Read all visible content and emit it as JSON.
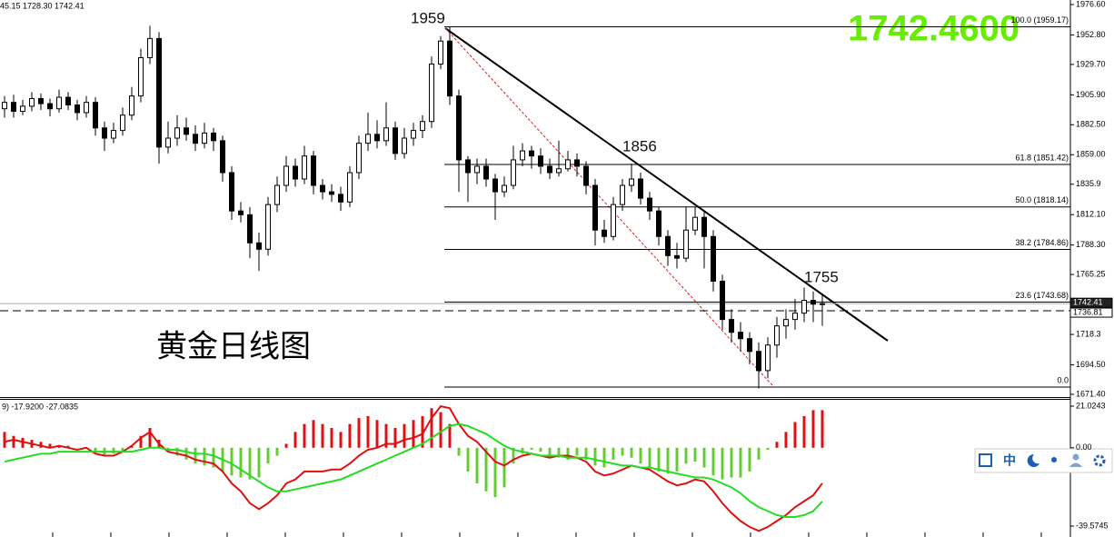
{
  "header": {
    "ohlc_text": "45.15 1728.30 1742.41",
    "big_price": "1742.4600",
    "chart_title": "黄金日线图",
    "annotations": [
      "1959",
      "1856",
      "1755"
    ]
  },
  "toolbar": {
    "lang": "中"
  },
  "chart_data": [
    {
      "type": "candlestick",
      "up_color": "#ffffff",
      "down_color": "#000000",
      "ylim": [
        1671.4,
        1976.6
      ],
      "yticks": [
        {
          "value": 1976.6,
          "label": "1976.60"
        },
        {
          "value": 1952.8,
          "label": "1952.80"
        },
        {
          "value": 1929.7,
          "label": "1929.70"
        },
        {
          "value": 1905.9,
          "label": "1905.90"
        },
        {
          "value": 1882.5,
          "label": "1882.50"
        },
        {
          "value": 1859.0,
          "label": "1859.00"
        },
        1835.9,
        {
          "value": 1812.1,
          "label": "1812.10"
        },
        {
          "value": 1788.3,
          "label": "1788.30"
        },
        1765.25,
        1718.3,
        {
          "value": 1694.5,
          "label": "1694.50"
        },
        {
          "value": 1671.4,
          "label": "1671.40"
        }
      ],
      "price_markers": [
        1742.41,
        1736.81
      ],
      "fib_levels": [
        {
          "value": 1959.17,
          "label": "100.0 (1959.17)"
        },
        {
          "value": 1851.42,
          "label": "61.8 (1851.42)"
        },
        {
          "value": 1818.14,
          "label": "50.0 (1818.14)"
        },
        {
          "value": 1784.86,
          "label": "38.2 (1784.86)"
        },
        {
          "value": 1743.68,
          "label": "23.6 (1743.68)"
        },
        {
          "value": 1677.12,
          "label": "0.0"
        }
      ],
      "candles": [
        [
          1895,
          1905,
          1888,
          1900
        ],
        [
          1900,
          1906,
          1888,
          1893
        ],
        [
          1893,
          1902,
          1890,
          1897
        ],
        [
          1897,
          1908,
          1893,
          1903
        ],
        [
          1903,
          1907,
          1894,
          1899
        ],
        [
          1899,
          1903,
          1889,
          1895
        ],
        [
          1895,
          1910,
          1892,
          1904
        ],
        [
          1904,
          1908,
          1894,
          1898
        ],
        [
          1898,
          1902,
          1886,
          1892
        ],
        [
          1892,
          1905,
          1888,
          1900
        ],
        [
          1900,
          1904,
          1874,
          1880
        ],
        [
          1880,
          1885,
          1862,
          1872
        ],
        [
          1872,
          1884,
          1868,
          1878
        ],
        [
          1878,
          1896,
          1874,
          1890
        ],
        [
          1890,
          1912,
          1886,
          1905
        ],
        [
          1905,
          1942,
          1900,
          1935
        ],
        [
          1935,
          1960,
          1930,
          1950
        ],
        [
          1950,
          1955,
          1852,
          1865
        ],
        [
          1865,
          1885,
          1860,
          1872
        ],
        [
          1872,
          1890,
          1866,
          1880
        ],
        [
          1880,
          1888,
          1870,
          1875
        ],
        [
          1875,
          1882,
          1862,
          1868
        ],
        [
          1868,
          1884,
          1864,
          1876
        ],
        [
          1876,
          1880,
          1862,
          1870
        ],
        [
          1870,
          1874,
          1838,
          1845
        ],
        [
          1845,
          1850,
          1808,
          1815
        ],
        [
          1815,
          1822,
          1806,
          1812
        ],
        [
          1812,
          1818,
          1778,
          1790
        ],
        [
          1790,
          1798,
          1768,
          1785
        ],
        [
          1785,
          1826,
          1780,
          1820
        ],
        [
          1820,
          1842,
          1814,
          1835
        ],
        [
          1835,
          1858,
          1830,
          1850
        ],
        [
          1850,
          1856,
          1834,
          1840
        ],
        [
          1840,
          1866,
          1836,
          1858
        ],
        [
          1858,
          1862,
          1828,
          1835
        ],
        [
          1835,
          1840,
          1824,
          1830
        ],
        [
          1830,
          1836,
          1822,
          1828
        ],
        [
          1828,
          1834,
          1815,
          1822
        ],
        [
          1822,
          1850,
          1818,
          1845
        ],
        [
          1845,
          1874,
          1840,
          1868
        ],
        [
          1868,
          1892,
          1862,
          1875
        ],
        [
          1875,
          1886,
          1864,
          1870
        ],
        [
          1870,
          1900,
          1866,
          1880
        ],
        [
          1880,
          1885,
          1855,
          1860
        ],
        [
          1860,
          1880,
          1856,
          1872
        ],
        [
          1872,
          1884,
          1866,
          1878
        ],
        [
          1878,
          1890,
          1872,
          1885
        ],
        [
          1885,
          1936,
          1880,
          1930
        ],
        [
          1930,
          1952,
          1926,
          1948
        ],
        [
          1948,
          1959,
          1898,
          1905
        ],
        [
          1905,
          1910,
          1830,
          1855
        ],
        [
          1855,
          1858,
          1822,
          1845
        ],
        [
          1845,
          1856,
          1836,
          1850
        ],
        [
          1850,
          1856,
          1834,
          1840
        ],
        [
          1840,
          1844,
          1808,
          1830
        ],
        [
          1830,
          1842,
          1826,
          1835
        ],
        [
          1835,
          1866,
          1832,
          1855
        ],
        [
          1855,
          1868,
          1850,
          1862
        ],
        [
          1862,
          1866,
          1848,
          1858
        ],
        [
          1858,
          1864,
          1844,
          1850
        ],
        [
          1850,
          1856,
          1840,
          1845
        ],
        [
          1845,
          1870,
          1842,
          1848
        ],
        [
          1848,
          1862,
          1846,
          1855
        ],
        [
          1855,
          1860,
          1842,
          1850
        ],
        [
          1850,
          1854,
          1828,
          1835
        ],
        [
          1835,
          1840,
          1788,
          1800
        ],
        [
          1800,
          1808,
          1790,
          1795
        ],
        [
          1795,
          1826,
          1792,
          1820
        ],
        [
          1820,
          1840,
          1815,
          1835
        ],
        [
          1835,
          1852,
          1830,
          1840
        ],
        [
          1840,
          1845,
          1820,
          1825
        ],
        [
          1825,
          1830,
          1808,
          1815
        ],
        [
          1815,
          1818,
          1788,
          1795
        ],
        [
          1795,
          1800,
          1772,
          1780
        ],
        [
          1780,
          1790,
          1770,
          1778
        ],
        [
          1778,
          1818,
          1775,
          1800
        ],
        [
          1800,
          1818,
          1796,
          1810
        ],
        [
          1810,
          1814,
          1770,
          1795
        ],
        [
          1795,
          1800,
          1752,
          1760
        ],
        [
          1760,
          1765,
          1722,
          1730
        ],
        [
          1730,
          1738,
          1712,
          1720
        ],
        [
          1720,
          1728,
          1705,
          1715
        ],
        [
          1715,
          1720,
          1695,
          1705
        ],
        [
          1705,
          1712,
          1676,
          1690
        ],
        [
          1690,
          1716,
          1684,
          1710
        ],
        [
          1710,
          1732,
          1700,
          1725
        ],
        [
          1725,
          1738,
          1715,
          1730
        ],
        [
          1730,
          1746,
          1722,
          1735
        ],
        [
          1735,
          1755,
          1728,
          1745
        ],
        [
          1745,
          1752,
          1728,
          1742
        ],
        [
          1742,
          1750,
          1725,
          1742.41
        ]
      ]
    },
    {
      "type": "macd",
      "header": "9) -17.9200 -27.0835",
      "ylim": [
        -39.5745,
        21.0243
      ],
      "yticks": [
        21.0243,
        {
          "value": 0,
          "label": "0.00"
        },
        -39.5745
      ],
      "histogram": {
        "up_color": "#dd1111",
        "down_color": "#66cc33",
        "values": [
          8,
          6,
          5,
          4,
          3,
          2,
          1,
          1,
          0,
          0,
          -3,
          -4,
          -3,
          -2,
          1,
          6,
          10,
          4,
          -2,
          -4,
          -6,
          -8,
          -9,
          -10,
          -12,
          -14,
          -15,
          -16,
          -15,
          -8,
          -4,
          2,
          8,
          12,
          14,
          12,
          10,
          8,
          12,
          15,
          16,
          14,
          12,
          10,
          12,
          14,
          16,
          20,
          18,
          12,
          -4,
          -12,
          -18,
          -22,
          -25,
          -20,
          -8,
          -3,
          -1,
          -2,
          -4,
          -5,
          -6,
          -4,
          -6,
          -9,
          -10,
          -6,
          -4,
          -5,
          -8,
          -10,
          -12,
          -13,
          -12,
          -8,
          -7,
          -10,
          -14,
          -16,
          -15,
          -15,
          -12,
          -6,
          -1,
          3,
          8,
          13,
          16,
          19,
          19
        ]
      },
      "series": [
        {
          "name": "MACD",
          "color": "#dd1111",
          "values": [
            3,
            4,
            3,
            2,
            1,
            0,
            1,
            0,
            -1,
            0,
            -3,
            -4,
            -4,
            -2,
            1,
            5,
            8,
            2,
            -2,
            -3,
            -4,
            -6,
            -7,
            -8,
            -12,
            -18,
            -22,
            -28,
            -31,
            -28,
            -24,
            -18,
            -16,
            -12,
            -12,
            -12,
            -11,
            -11,
            -8,
            -4,
            -1,
            0,
            2,
            2,
            4,
            5,
            7,
            15,
            21,
            20,
            12,
            6,
            3,
            -2,
            -7,
            -9,
            -6,
            -4,
            -3,
            -4,
            -5,
            -4,
            -4,
            -5,
            -7,
            -12,
            -14,
            -13,
            -11,
            -9,
            -10,
            -11,
            -14,
            -17,
            -19,
            -18,
            -16,
            -17,
            -22,
            -28,
            -33,
            -37,
            -40,
            -42,
            -40,
            -37,
            -34,
            -30,
            -27,
            -24,
            -17.92
          ]
        },
        {
          "name": "Signal",
          "color": "#22dd22",
          "values": [
            -7,
            -6,
            -5,
            -4,
            -3,
            -3,
            -2,
            -2,
            -2,
            -2,
            -2,
            -2,
            -2,
            -2,
            -2,
            -1,
            0,
            0,
            -1,
            -1,
            -2,
            -3,
            -3,
            -4,
            -6,
            -8,
            -11,
            -14,
            -17,
            -20,
            -22,
            -22,
            -21,
            -20,
            -19,
            -18,
            -17,
            -16,
            -14,
            -12,
            -10,
            -8,
            -6,
            -4,
            -2,
            0,
            2,
            5,
            8,
            11,
            12,
            11,
            9,
            7,
            4,
            1,
            -1,
            -2,
            -3,
            -4,
            -4,
            -4,
            -5,
            -5,
            -5,
            -6,
            -7,
            -8,
            -9,
            -9,
            -10,
            -10,
            -11,
            -12,
            -13,
            -14,
            -15,
            -15,
            -16,
            -18,
            -20,
            -23,
            -27,
            -30,
            -32,
            -34,
            -35,
            -35,
            -34,
            -32,
            -27.0835
          ]
        }
      ]
    }
  ]
}
